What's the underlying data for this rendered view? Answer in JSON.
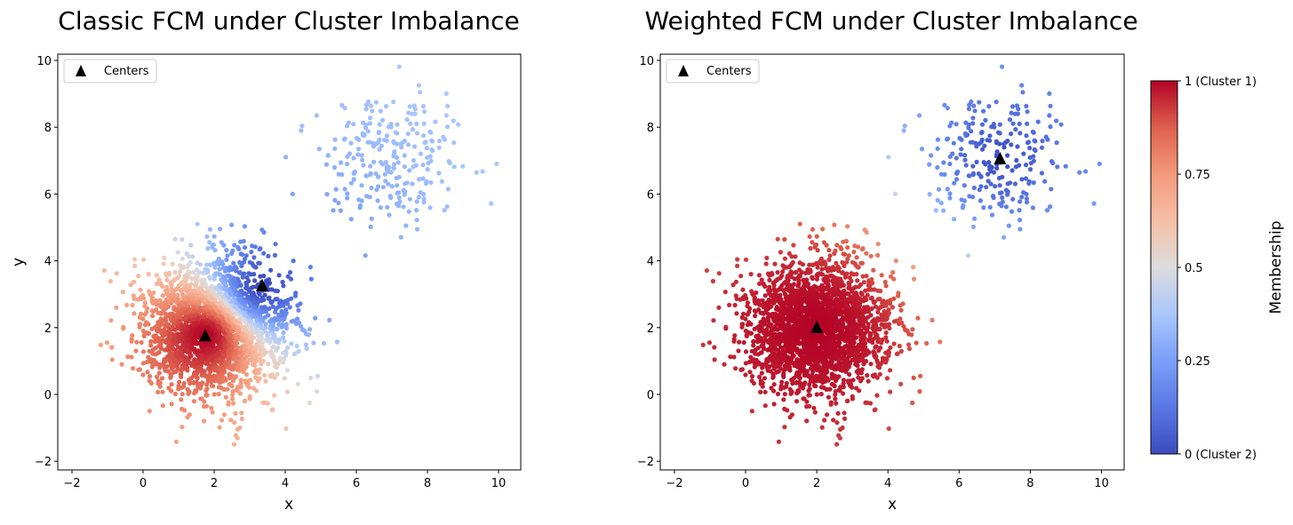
{
  "chart_data": [
    {
      "type": "scatter",
      "title": "Classic FCM under Cluster Imbalance",
      "xlabel": "x",
      "ylabel": "y",
      "xlim": [
        -2.4,
        10.6
      ],
      "ylim": [
        -2.25,
        10.2
      ],
      "xticks": [
        "−2",
        "0",
        "2",
        "4",
        "6",
        "8",
        "10"
      ],
      "yticks": [
        "−2",
        "0",
        "2",
        "4",
        "6",
        "8",
        "10"
      ],
      "legend": {
        "label": "Centers",
        "placement": "top-left"
      },
      "centers": [
        [
          1.75,
          1.75
        ],
        [
          3.35,
          3.25
        ]
      ],
      "clusters": [
        {
          "name": "Cluster 1",
          "mean": [
            2,
            2
          ],
          "std": 1.0,
          "count": 2500
        },
        {
          "name": "Cluster 2",
          "mean": [
            7,
            7
          ],
          "std": 1.0,
          "count": 250
        }
      ],
      "color_by": "membership in Cluster 1 (fuzzy c-means, m=2)"
    },
    {
      "type": "scatter",
      "title": "Weighted FCM under Cluster Imbalance",
      "xlabel": "x",
      "ylabel": "",
      "xlim": [
        -2.4,
        10.6
      ],
      "ylim": [
        -2.25,
        10.2
      ],
      "xticks": [
        "−2",
        "0",
        "2",
        "4",
        "6",
        "8",
        "10"
      ],
      "yticks": [
        "−2",
        "0",
        "2",
        "4",
        "6",
        "8",
        "10"
      ],
      "legend": {
        "label": "Centers",
        "placement": "top-left"
      },
      "centers": [
        [
          2.0,
          2.0
        ],
        [
          7.15,
          7.05
        ]
      ],
      "clusters": [
        {
          "name": "Cluster 1",
          "mean": [
            2,
            2
          ],
          "std": 1.0,
          "count": 2500
        },
        {
          "name": "Cluster 2",
          "mean": [
            7,
            7
          ],
          "std": 1.0,
          "count": 250
        }
      ],
      "color_by": "membership in Cluster 1 (weighted fuzzy c-means)"
    }
  ],
  "colorbar": {
    "label": "Membership",
    "ticks": [
      {
        "value": 1,
        "label": "1 (Cluster 1)"
      },
      {
        "value": 0.75,
        "label": "0.75"
      },
      {
        "value": 0.5,
        "label": "0.5"
      },
      {
        "value": 0.25,
        "label": "0.25"
      },
      {
        "value": 0,
        "label": "0 (Cluster 2)"
      }
    ],
    "colormap": [
      "#3b4cc0",
      "#5a78e4",
      "#7b9ff9",
      "#aac7fd",
      "#dddcdc",
      "#f6bfa6",
      "#f49a7b",
      "#de604d",
      "#b40426"
    ]
  }
}
